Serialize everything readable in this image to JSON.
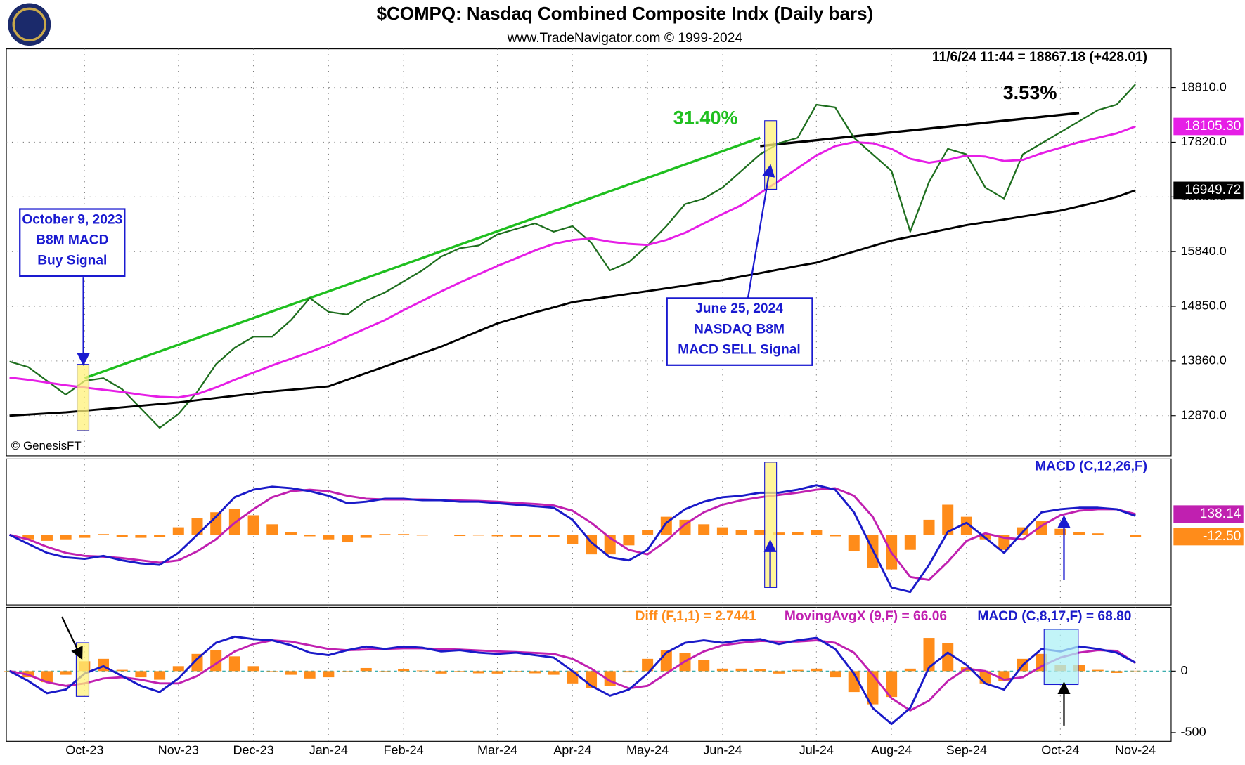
{
  "header": {
    "title": "$COMPQ:  Nasdaq Combined Composite Indx  (Daily bars)",
    "subtitle": "www.TradeNavigator.com © 1999-2024",
    "quote": "11/6/24 11:44 = 18867.18 (+428.01)",
    "credit": "© GenesisFT"
  },
  "annotations": {
    "buy": [
      "October 9, 2023",
      "B8M MACD",
      "Buy Signal"
    ],
    "sell": [
      "June 25, 2024",
      "NASDAQ B8M",
      "MACD SELL Signal"
    ]
  },
  "chart_data": [
    {
      "type": "line",
      "categories": [
        null,
        null,
        null,
        null,
        "Oct-23",
        null,
        null,
        null,
        null,
        "Nov-23",
        null,
        null,
        null,
        "Dec-23",
        null,
        null,
        null,
        "Jan-24",
        null,
        null,
        null,
        "Feb-24",
        null,
        null,
        null,
        null,
        "Mar-24",
        null,
        null,
        null,
        "Apr-24",
        null,
        null,
        null,
        "May-24",
        null,
        null,
        null,
        "Jun-24",
        null,
        null,
        null,
        null,
        "Jul-24",
        null,
        null,
        null,
        "Aug-24",
        null,
        null,
        null,
        "Sep-24",
        null,
        null,
        null,
        null,
        "Oct-24",
        null,
        null,
        null,
        "Nov-24"
      ],
      "ylim": [
        12143,
        19509
      ],
      "yticks": [
        {
          "value": 12870,
          "label": "12870.0"
        },
        {
          "value": 13860,
          "label": "13860.0"
        },
        {
          "value": 14850,
          "label": "14850.0"
        },
        {
          "value": 15840,
          "label": "15840.0"
        },
        {
          "value": 16830,
          "label": "16830.0"
        },
        {
          "value": 17820,
          "label": "17820.0"
        },
        {
          "value": 18810,
          "label": "18810.0"
        }
      ],
      "grid": true,
      "series": [
        {
          "style": "line",
          "color": "#1e6e1e",
          "values": [
            13850,
            13750,
            13500,
            13250,
            13500,
            13550,
            13350,
            13000,
            12650,
            12900,
            13300,
            13800,
            14100,
            14300,
            14300,
            14600,
            15000,
            14750,
            14700,
            14950,
            15100,
            15300,
            15500,
            15750,
            15900,
            15950,
            16150,
            16250,
            16350,
            16200,
            16300,
            16000,
            15500,
            15650,
            15950,
            16300,
            16700,
            16800,
            17000,
            17300,
            17600,
            17800,
            17900,
            18500,
            18450,
            17900,
            17600,
            17300,
            16200,
            17100,
            17700,
            17600,
            17000,
            16800,
            17600,
            17800,
            18000,
            18200,
            18400,
            18500,
            18867.18
          ]
        },
        {
          "style": "line",
          "color": "#e61ee6",
          "end_label": "18105.30",
          "values": [
            13560,
            13520,
            13470,
            13420,
            13380,
            13340,
            13300,
            13250,
            13210,
            13200,
            13260,
            13380,
            13520,
            13650,
            13780,
            13900,
            14020,
            14150,
            14300,
            14450,
            14600,
            14780,
            14950,
            15120,
            15280,
            15430,
            15580,
            15720,
            15860,
            15980,
            16050,
            16080,
            16020,
            15980,
            15960,
            16050,
            16180,
            16350,
            16520,
            16680,
            16900,
            17120,
            17350,
            17580,
            17750,
            17820,
            17800,
            17700,
            17520,
            17450,
            17500,
            17580,
            17560,
            17480,
            17500,
            17620,
            17720,
            17820,
            17900,
            17980,
            18105.3
          ]
        },
        {
          "style": "line",
          "color": "#000000",
          "end_label": "16949.72",
          "values": [
            12870,
            12890,
            12910,
            12930,
            12960,
            12990,
            13020,
            13050,
            13080,
            13110,
            13150,
            13190,
            13230,
            13270,
            13310,
            13340,
            13370,
            13400,
            13520,
            13640,
            13760,
            13880,
            14000,
            14120,
            14260,
            14400,
            14540,
            14640,
            14740,
            14830,
            14925,
            14975,
            15025,
            15075,
            15125,
            15175,
            15225,
            15275,
            15325,
            15390,
            15450,
            15515,
            15580,
            15640,
            15740,
            15840,
            15940,
            16040,
            16110,
            16180,
            16250,
            16320,
            16370,
            16420,
            16475,
            16530,
            16580,
            16660,
            16740,
            16830,
            16949.72
          ]
        }
      ],
      "trendlines": [
        {
          "color": "#1fbf1f",
          "label": "31.40%",
          "start": {
            "x": 4,
            "y": 13550
          },
          "end": {
            "x": 40,
            "y": 17900
          }
        },
        {
          "color": "#000000",
          "label": "3.53%",
          "start": {
            "x": 40,
            "y": 17750
          },
          "end": {
            "x": 57,
            "y": 18350
          }
        }
      ]
    },
    {
      "type": "line",
      "title": "MACD (C,12,26,F)",
      "ylim": [
        -466,
        504
      ],
      "series": [
        {
          "style": "bars",
          "color": "#ff8c1a",
          "end_label": "-12.50",
          "values": [
            0,
            -30,
            -40,
            -30,
            -20,
            5,
            -15,
            -20,
            -15,
            50,
            110,
            150,
            170,
            130,
            70,
            20,
            -10,
            -30,
            -50,
            -20,
            5,
            5,
            -5,
            -2,
            -8,
            -5,
            -10,
            -12,
            -15,
            -15,
            -60,
            -130,
            -130,
            -70,
            30,
            120,
            100,
            70,
            50,
            30,
            30,
            15,
            20,
            30,
            -10,
            -110,
            -220,
            -230,
            -100,
            100,
            200,
            120,
            -30,
            -100,
            50,
            90,
            40,
            20,
            10,
            0,
            -12.5
          ]
        },
        {
          "style": "line",
          "color": "#c020b0",
          "end_label": "138.14",
          "values": [
            0,
            -30,
            -80,
            -120,
            -140,
            -145,
            -155,
            -170,
            -185,
            -170,
            -110,
            -30,
            80,
            170,
            250,
            290,
            300,
            290,
            260,
            240,
            235,
            235,
            235,
            232,
            228,
            225,
            220,
            212,
            205,
            195,
            160,
            80,
            -20,
            -100,
            -130,
            -40,
            70,
            150,
            200,
            230,
            250,
            265,
            280,
            300,
            310,
            260,
            120,
            -120,
            -280,
            -300,
            -180,
            -40,
            10,
            -20,
            -30,
            60,
            130,
            160,
            170,
            170,
            138.14
          ]
        },
        {
          "style": "line",
          "color": "#1a1ac8",
          "values": [
            0,
            -60,
            -120,
            -150,
            -160,
            -140,
            -170,
            -190,
            -200,
            -120,
            0,
            120,
            250,
            300,
            320,
            310,
            290,
            260,
            210,
            220,
            240,
            240,
            230,
            230,
            220,
            220,
            210,
            200,
            190,
            180,
            100,
            -50,
            -150,
            -170,
            -100,
            80,
            170,
            220,
            250,
            260,
            280,
            280,
            300,
            330,
            300,
            150,
            -100,
            -350,
            -380,
            -200,
            20,
            80,
            -20,
            -120,
            20,
            150,
            170,
            180,
            180,
            170,
            125.64
          ]
        }
      ]
    },
    {
      "type": "line",
      "ylim": [
        -571,
        519
      ],
      "yticks": [
        -500,
        0
      ],
      "zero_line_color": "#21a3a3",
      "series": [
        {
          "style": "bars",
          "name": "Diff (F,1,1) = 2.7441",
          "color": "#ff8c1a",
          "values": [
            0,
            -50,
            -90,
            -30,
            80,
            100,
            10,
            -50,
            -70,
            40,
            140,
            170,
            120,
            40,
            0,
            -30,
            -60,
            -50,
            0,
            25,
            0,
            15,
            5,
            -20,
            -5,
            -18,
            -20,
            -5,
            -18,
            -30,
            -100,
            -140,
            -120,
            -10,
            100,
            170,
            150,
            90,
            20,
            20,
            15,
            -20,
            10,
            20,
            -50,
            -170,
            -270,
            -210,
            20,
            270,
            230,
            30,
            -100,
            -80,
            100,
            140,
            50,
            50,
            10,
            -15,
            2.7441
          ]
        },
        {
          "style": "line",
          "name": "MovingAvgX (9,F) = 66.06",
          "color": "#c020b0",
          "values": [
            0,
            -30,
            -90,
            -120,
            -100,
            -60,
            -50,
            -70,
            -100,
            -100,
            -40,
            60,
            160,
            220,
            250,
            240,
            210,
            180,
            170,
            175,
            180,
            185,
            185,
            180,
            175,
            168,
            160,
            155,
            148,
            140,
            100,
            20,
            -80,
            -140,
            -120,
            -20,
            80,
            160,
            210,
            230,
            245,
            240,
            240,
            250,
            230,
            150,
            -30,
            -220,
            -320,
            -240,
            -80,
            20,
            0,
            -70,
            -50,
            40,
            110,
            150,
            170,
            165,
            66.06
          ]
        },
        {
          "style": "line",
          "name": "MACD (C,8,17,F) = 68.80",
          "color": "#1a1ac8",
          "values": [
            0,
            -80,
            -180,
            -150,
            -20,
            40,
            -40,
            -120,
            -170,
            -60,
            100,
            230,
            280,
            260,
            250,
            210,
            150,
            130,
            170,
            200,
            180,
            200,
            190,
            160,
            170,
            150,
            140,
            150,
            130,
            110,
            0,
            -120,
            -200,
            -150,
            -20,
            150,
            230,
            250,
            230,
            250,
            260,
            220,
            250,
            270,
            180,
            -20,
            -300,
            -430,
            -300,
            30,
            150,
            50,
            -100,
            -150,
            50,
            180,
            160,
            200,
            180,
            150,
            68.8
          ]
        }
      ]
    }
  ]
}
